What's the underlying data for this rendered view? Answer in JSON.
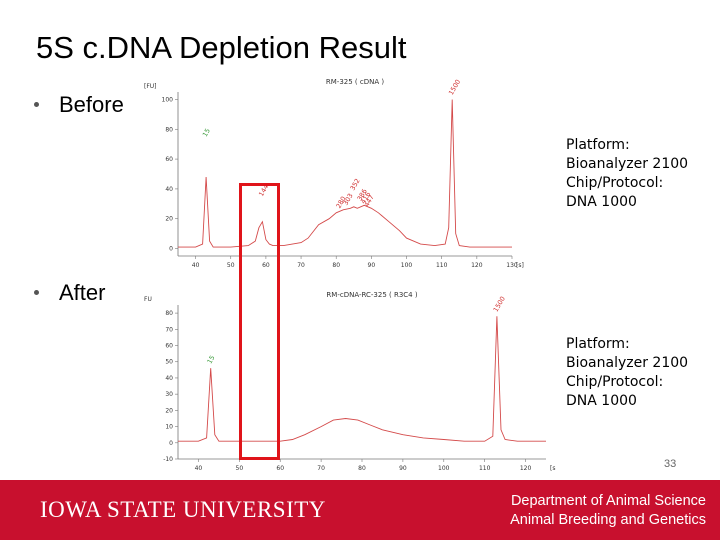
{
  "slide": {
    "title": "5S c.DNA Depletion Result",
    "bullets": [
      "Before",
      "After"
    ],
    "platform_lines": [
      "Platform:",
      "Bioanalyzer 2100",
      "Chip/Protocol:",
      "DNA 1000"
    ],
    "page_number": "33"
  },
  "footer": {
    "university": "IOWA STATE UNIVERSITY",
    "dept_line1": "Department of Animal Science",
    "dept_line2": "Animal Breeding and Genetics",
    "color": "#c8102e"
  },
  "highlight_color": "#e0141a",
  "chart_data": [
    {
      "type": "line",
      "title": "RM-325 ( cDNA )",
      "ylabel": "[FU]",
      "xlabel": "[s]",
      "xlim": [
        35,
        130
      ],
      "ylim": [
        -5,
        105
      ],
      "x_ticks": [
        "40",
        "50",
        "60",
        "70",
        "80",
        "90",
        "100",
        "110",
        "120",
        "130"
      ],
      "y_ticks": [
        "0",
        "20",
        "40",
        "60",
        "80",
        "100"
      ],
      "peak_labels": [
        {
          "x": 43,
          "y": 72,
          "text": "15",
          "color": "#3a9a3a"
        },
        {
          "x": 59,
          "y": 32,
          "text": "144",
          "color": "#d03030"
        },
        {
          "x": 81,
          "y": 24,
          "text": "280",
          "color": "#d03030"
        },
        {
          "x": 83,
          "y": 26,
          "text": "303",
          "color": "#d03030"
        },
        {
          "x": 85,
          "y": 36,
          "text": "352",
          "color": "#d03030"
        },
        {
          "x": 87,
          "y": 29,
          "text": "386",
          "color": "#d03030"
        },
        {
          "x": 88,
          "y": 27,
          "text": "416",
          "color": "#d03030"
        },
        {
          "x": 89,
          "y": 25,
          "text": "447",
          "color": "#d03030"
        },
        {
          "x": 113,
          "y": 100,
          "text": "1500",
          "color": "#d03030"
        }
      ],
      "series": [
        {
          "color": "#d44a4a",
          "x": [
            35,
            40,
            42,
            43,
            44,
            45,
            50,
            55,
            57,
            58,
            59,
            60,
            61,
            62,
            65,
            70,
            72,
            75,
            78,
            80,
            82,
            84,
            85,
            86,
            88,
            90,
            92,
            95,
            98,
            100,
            104,
            108,
            111,
            112,
            113,
            114,
            115,
            118,
            125,
            130
          ],
          "y": [
            1,
            1,
            3,
            48,
            5,
            1,
            1,
            2,
            5,
            14,
            18,
            6,
            3,
            2,
            2,
            4,
            7,
            16,
            20,
            24,
            26,
            27,
            28,
            27,
            29,
            27,
            24,
            18,
            12,
            7,
            3,
            2,
            3,
            14,
            100,
            10,
            2,
            1,
            1,
            1
          ]
        }
      ]
    },
    {
      "type": "line",
      "title": "RM-cDNA-RC-325 ( R3C4 )",
      "ylabel": "FU",
      "xlabel": "[s",
      "xlim": [
        35,
        125
      ],
      "ylim": [
        -10,
        85
      ],
      "x_ticks": [
        "40",
        "50",
        "60",
        "70",
        "80",
        "90",
        "100",
        "110",
        "120"
      ],
      "y_ticks": [
        "-10",
        "0",
        "10",
        "20",
        "30",
        "40",
        "50",
        "60",
        "70",
        "80"
      ],
      "peak_labels": [
        {
          "x": 43,
          "y": 46,
          "text": "15",
          "color": "#3a9a3a"
        },
        {
          "x": 113,
          "y": 78,
          "text": "1500",
          "color": "#d03030"
        }
      ],
      "series": [
        {
          "color": "#d44a4a",
          "x": [
            35,
            40,
            42,
            43,
            44,
            45,
            50,
            55,
            60,
            63,
            66,
            70,
            73,
            76,
            79,
            82,
            85,
            90,
            95,
            100,
            105,
            110,
            112,
            113,
            114,
            115,
            118,
            125
          ],
          "y": [
            1,
            1,
            3,
            46,
            5,
            1,
            1,
            1,
            1,
            2,
            5,
            10,
            14,
            15,
            14,
            11,
            8,
            5,
            3,
            2,
            1,
            1,
            4,
            78,
            8,
            2,
            1,
            1
          ]
        }
      ]
    }
  ]
}
